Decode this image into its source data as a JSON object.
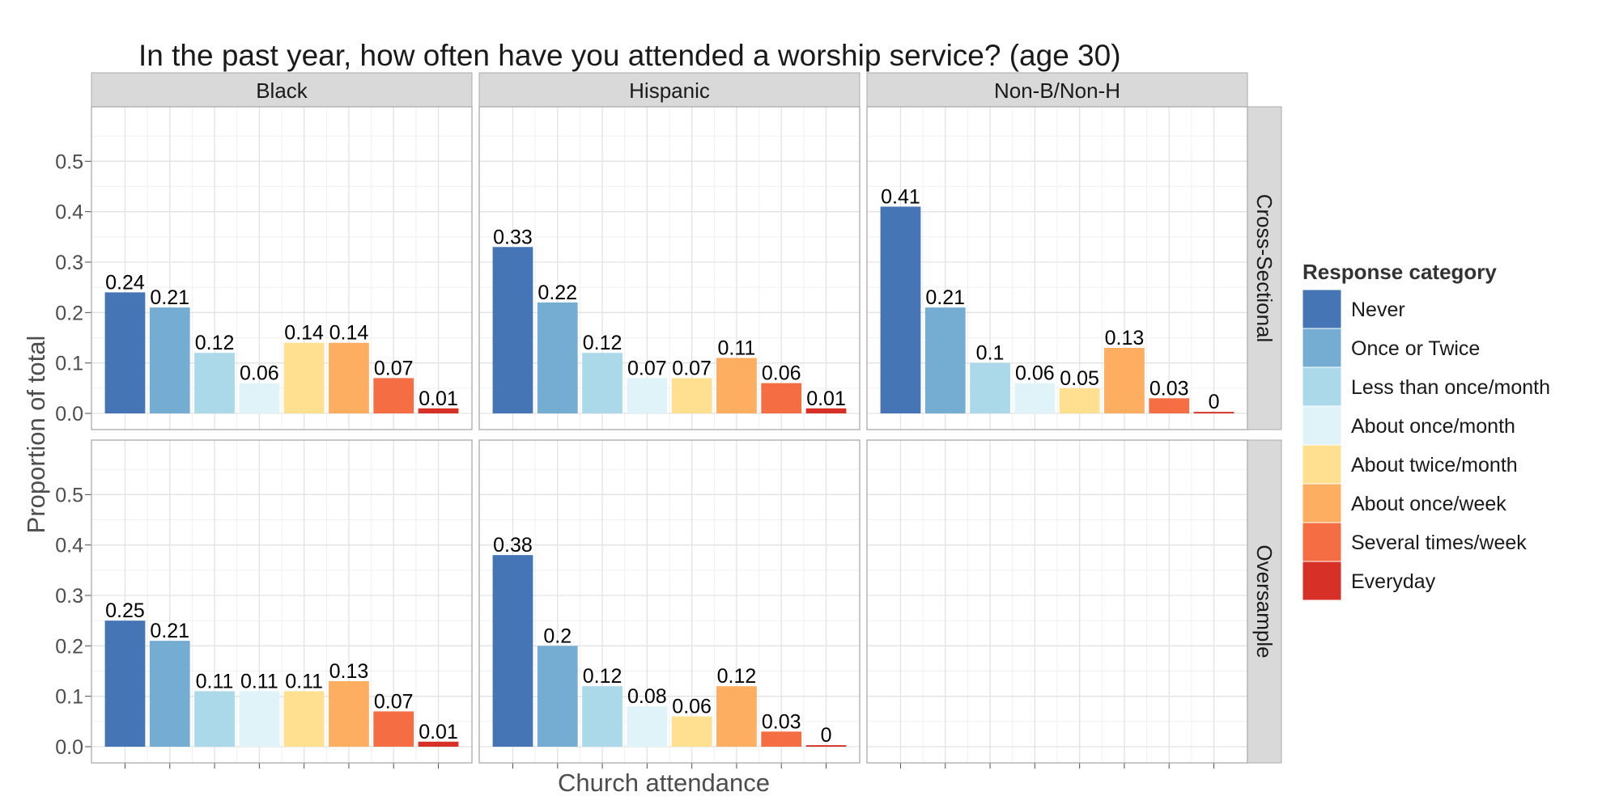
{
  "chart_data": {
    "type": "bar",
    "title": "In the past year, how often have you attended a worship service? (age 30)",
    "xlabel": "Church attendance",
    "ylabel": "Proportion of total",
    "ylim": [
      0,
      0.6
    ],
    "yticks": [
      "0.0",
      "0.1",
      "0.2",
      "0.3",
      "0.4",
      "0.5"
    ],
    "grid": true,
    "legend_position": "right",
    "legend_title": "Response category",
    "col_facets": [
      "Black",
      "Hispanic",
      "Non-B/Non-H"
    ],
    "row_facets": [
      "Cross-Sectional",
      "Oversample"
    ],
    "categories": [
      "Never",
      "Once or Twice",
      "Less than once/month",
      "About once/month",
      "About twice/month",
      "About once/week",
      "Several times/week",
      "Everyday"
    ],
    "colors": [
      "#4575b4",
      "#74add1",
      "#abd9e9",
      "#e0f3f8",
      "#fee090",
      "#fdae61",
      "#f46d43",
      "#d73027"
    ],
    "panels": [
      {
        "row": "Cross-Sectional",
        "col": "Black",
        "values": [
          0.24,
          0.21,
          0.12,
          0.06,
          0.14,
          0.14,
          0.07,
          0.01
        ],
        "labels": [
          "0.24",
          "0.21",
          "0.12",
          "0.06",
          "0.14",
          "0.14",
          "0.07",
          "0.01"
        ]
      },
      {
        "row": "Cross-Sectional",
        "col": "Hispanic",
        "values": [
          0.33,
          0.22,
          0.12,
          0.07,
          0.07,
          0.11,
          0.06,
          0.01
        ],
        "labels": [
          "0.33",
          "0.22",
          "0.12",
          "0.07",
          "0.07",
          "0.11",
          "0.06",
          "0.01"
        ]
      },
      {
        "row": "Cross-Sectional",
        "col": "Non-B/Non-H",
        "values": [
          0.41,
          0.21,
          0.1,
          0.06,
          0.05,
          0.13,
          0.03,
          0.003
        ],
        "labels": [
          "0.41",
          "0.21",
          "0.1",
          "0.06",
          "0.05",
          "0.13",
          "0.03",
          "0"
        ]
      },
      {
        "row": "Oversample",
        "col": "Black",
        "values": [
          0.25,
          0.21,
          0.11,
          0.11,
          0.11,
          0.13,
          0.07,
          0.01
        ],
        "labels": [
          "0.25",
          "0.21",
          "0.11",
          "0.11",
          "0.11",
          "0.13",
          "0.07",
          "0.01"
        ]
      },
      {
        "row": "Oversample",
        "col": "Hispanic",
        "values": [
          0.38,
          0.2,
          0.12,
          0.08,
          0.06,
          0.12,
          0.03,
          0.003
        ],
        "labels": [
          "0.38",
          "0.2",
          "0.12",
          "0.08",
          "0.06",
          "0.12",
          "0.03",
          "0"
        ]
      },
      {
        "row": "Oversample",
        "col": "Non-B/Non-H",
        "values": [],
        "labels": []
      }
    ]
  }
}
